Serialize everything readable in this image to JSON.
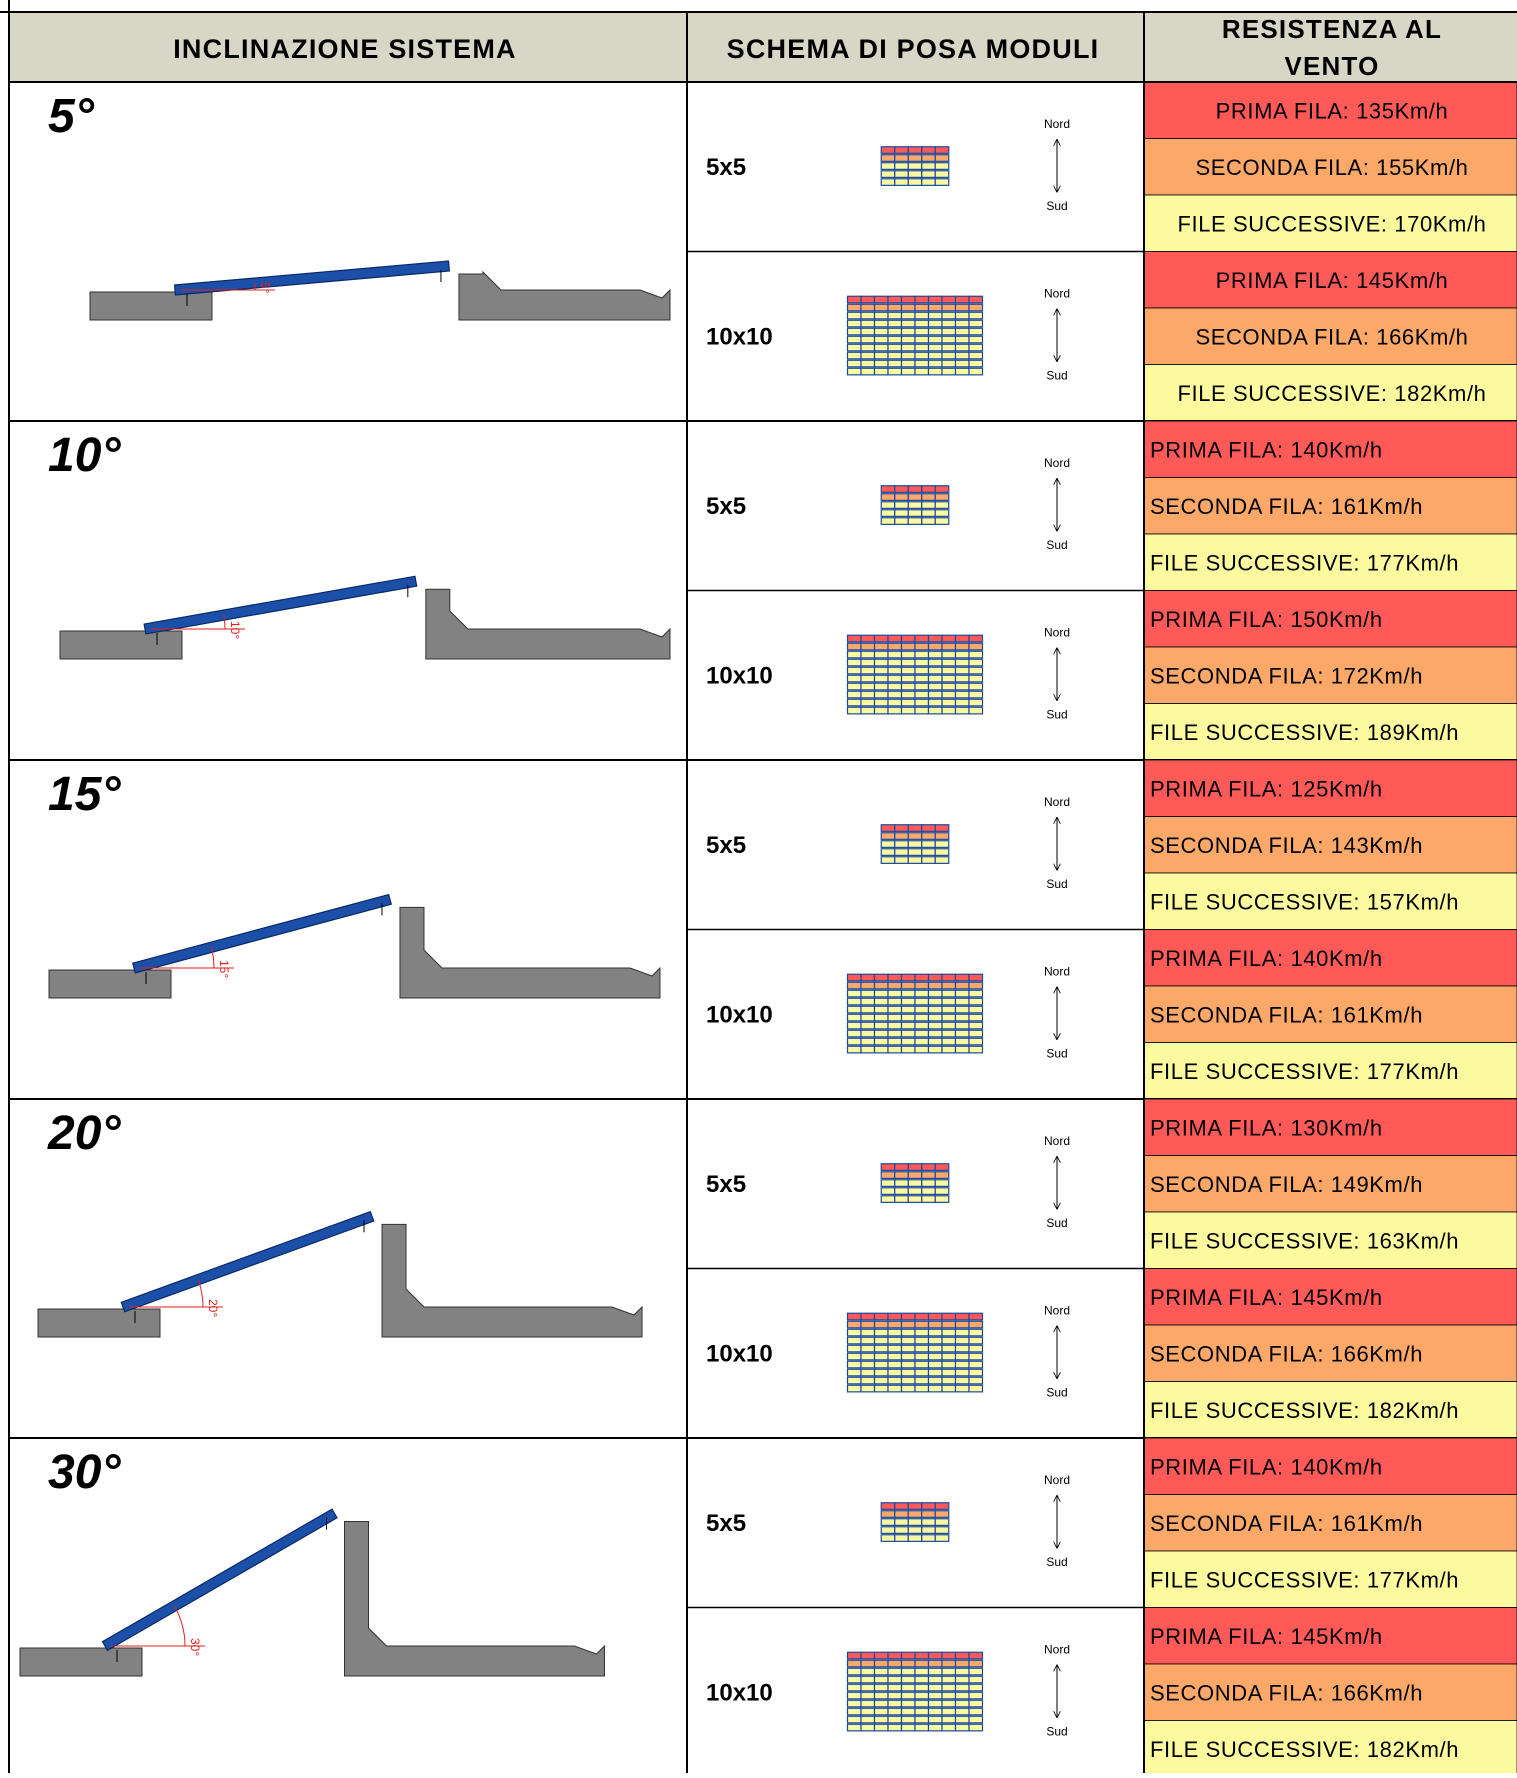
{
  "headers": {
    "col1": "INCLINAZIONE SISTEMA",
    "col2": "SCHEMA DI POSA MODULI",
    "col3_line1": "RESISTENZA AL",
    "col3_line2": "VENTO"
  },
  "compass": {
    "north": "Nord",
    "south": "Sud"
  },
  "colors": {
    "header_bg": "#d8d6c6",
    "first_row": "#ff5a58",
    "second_row": "#fba868",
    "next_rows": "#fcfa9e",
    "panel": "#1c4fa8",
    "concrete": "#828282",
    "angle_marker": "#e0201c"
  },
  "groups": [
    {
      "tilt": "5°",
      "tilt_value": 5,
      "align": "center",
      "angle_label": "5°",
      "layouts": [
        {
          "label": "5x5",
          "grid": 5,
          "winds": [
            "PRIMA FILA: 135Km/h",
            "SECONDA FILA: 155Km/h",
            "FILE SUCCESSIVE: 170Km/h"
          ]
        },
        {
          "label": "10x10",
          "grid": 10,
          "winds": [
            "PRIMA FILA: 145Km/h",
            "SECONDA FILA: 166Km/h",
            "FILE SUCCESSIVE: 182Km/h"
          ]
        }
      ]
    },
    {
      "tilt": "10°",
      "tilt_value": 10,
      "align": "left",
      "angle_label": "10°",
      "layouts": [
        {
          "label": "5x5",
          "grid": 5,
          "winds": [
            "PRIMA FILA: 140Km/h",
            "SECONDA FILA: 161Km/h",
            "FILE SUCCESSIVE: 177Km/h"
          ]
        },
        {
          "label": "10x10",
          "grid": 10,
          "winds": [
            "PRIMA FILA: 150Km/h",
            "SECONDA FILA: 172Km/h",
            "FILE SUCCESSIVE: 189Km/h"
          ]
        }
      ]
    },
    {
      "tilt": "15°",
      "tilt_value": 15,
      "align": "left",
      "angle_label": "15°",
      "layouts": [
        {
          "label": "5x5",
          "grid": 5,
          "winds": [
            "PRIMA FILA: 125Km/h",
            "SECONDA FILA: 143Km/h",
            "FILE SUCCESSIVE: 157Km/h"
          ]
        },
        {
          "label": "10x10",
          "grid": 10,
          "winds": [
            "PRIMA FILA: 140Km/h",
            "SECONDA FILA: 161Km/h",
            "FILE SUCCESSIVE: 177Km/h"
          ]
        }
      ]
    },
    {
      "tilt": "20°",
      "tilt_value": 20,
      "align": "left",
      "angle_label": "20°",
      "layouts": [
        {
          "label": "5x5",
          "grid": 5,
          "winds": [
            "PRIMA FILA: 130Km/h",
            "SECONDA FILA: 149Km/h",
            "FILE SUCCESSIVE: 163Km/h"
          ]
        },
        {
          "label": "10x10",
          "grid": 10,
          "winds": [
            "PRIMA FILA: 145Km/h",
            "SECONDA FILA: 166Km/h",
            "FILE SUCCESSIVE: 182Km/h"
          ]
        }
      ]
    },
    {
      "tilt": "30°",
      "tilt_value": 30,
      "align": "left",
      "angle_label": "30°",
      "layouts": [
        {
          "label": "5x5",
          "grid": 5,
          "winds": [
            "PRIMA FILA: 140Km/h",
            "SECONDA FILA: 161Km/h",
            "FILE SUCCESSIVE: 177Km/h"
          ]
        },
        {
          "label": "10x10",
          "grid": 10,
          "winds": [
            "PRIMA FILA: 145Km/h",
            "SECONDA FILA: 166Km/h",
            "FILE SUCCESSIVE: 182Km/h"
          ]
        }
      ]
    }
  ]
}
